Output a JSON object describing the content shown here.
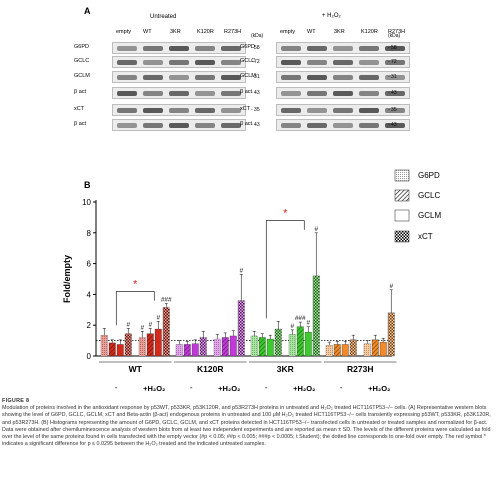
{
  "panel_a": {
    "letter": "A",
    "untreated_label": "Untreated",
    "treated_label": "+ H₂O₂",
    "kda_label": "(kDa)",
    "lanes_untreated": [
      "empty",
      "WT",
      "3KR",
      "K120R",
      "R273H"
    ],
    "lanes_treated": [
      "empty",
      "WT",
      "3KR",
      "K120R",
      "R273H"
    ],
    "rows": [
      {
        "name": "G6PD",
        "kda": "- 58"
      },
      {
        "name": "GCLC",
        "kda": "- 72"
      },
      {
        "name": "GCLM",
        "kda": "- 31"
      },
      {
        "name": "β act",
        "kda": "- 43"
      },
      {
        "name": "xCT",
        "kda": "- 35"
      },
      {
        "name": "β act",
        "kda": "- 43"
      }
    ]
  },
  "panel_b": {
    "letter": "B",
    "legend": [
      {
        "label": "G6PD"
      },
      {
        "label": "GCLC"
      },
      {
        "label": "GCLM"
      },
      {
        "label": "xCT"
      }
    ],
    "group_labels": [
      "WT",
      "K120R",
      "3KR",
      "R273H"
    ],
    "treatment_minus": "-",
    "treatment_plus": "+H₂O₂",
    "colors": {
      "WT": "#d42a1c",
      "K120R": "#c03ad8",
      "3KR": "#3ccb2c",
      "R273H": "#f08a2a",
      "star": "#e02020"
    }
  },
  "chart_data": {
    "type": "bar",
    "ylabel": "Fold/empty",
    "ylim": [
      0,
      10
    ],
    "yticks": [
      0,
      2,
      4,
      6,
      8,
      10
    ],
    "reference_line": 1,
    "groups": [
      {
        "name": "WT",
        "untreated": [
          1.35,
          0.85,
          0.75,
          1.45
        ],
        "treated": [
          1.2,
          1.45,
          1.75,
          3.15
        ],
        "untreated_err": [
          0.45,
          0.2,
          0.3,
          0.35
        ],
        "treated_err": [
          0.4,
          0.35,
          0.5,
          0.25
        ],
        "untreated_marks": [
          "",
          "",
          "",
          "#"
        ],
        "treated_marks": [
          "#",
          "#",
          "#",
          "###"
        ]
      },
      {
        "name": "K120R",
        "untreated": [
          0.75,
          0.75,
          0.8,
          1.2
        ],
        "treated": [
          1.1,
          1.2,
          1.3,
          3.6
        ],
        "untreated_err": [
          0.25,
          0.2,
          0.25,
          0.4
        ],
        "treated_err": [
          0.3,
          0.3,
          0.35,
          1.7
        ],
        "untreated_marks": [
          "",
          "",
          "",
          ""
        ],
        "treated_marks": [
          "",
          "",
          "",
          "#"
        ]
      },
      {
        "name": "3KR",
        "untreated": [
          1.3,
          1.2,
          1.1,
          1.75
        ],
        "treated": [
          1.4,
          1.9,
          1.55,
          5.2
        ],
        "untreated_err": [
          0.3,
          0.25,
          0.25,
          0.5
        ],
        "treated_err": [
          0.3,
          0.3,
          0.35,
          2.8
        ],
        "untreated_marks": [
          "",
          "",
          "",
          ""
        ],
        "treated_marks": [
          "#",
          "###",
          "#",
          "#"
        ]
      },
      {
        "name": "R273H",
        "untreated": [
          0.7,
          0.75,
          0.75,
          1.05
        ],
        "treated": [
          0.8,
          1.05,
          0.9,
          2.8
        ],
        "untreated_err": [
          0.2,
          0.2,
          0.2,
          0.3
        ],
        "treated_err": [
          0.2,
          0.3,
          0.25,
          1.5
        ],
        "untreated_marks": [
          "",
          "",
          "",
          ""
        ],
        "treated_marks": [
          "",
          "",
          "",
          "#"
        ]
      }
    ],
    "significance": [
      {
        "group": "WT",
        "label": "*"
      },
      {
        "group": "3KR",
        "label": "*"
      }
    ]
  },
  "caption": {
    "figure_label": "FIGURE 8",
    "text": "Modulation of proteins involved in the antioxidant response by p53WT, p533KR, p53K120R, and p53R273H proteins in untreated and H₂O₂ treated HCT116TP53−/− cells. (A) Representative western blots showing the level of G6PD, GCLC, GCLM, xCT and Beta-actin (β-act) endogenous proteins in untreated and 100 μM H₂O₂ treated HCT116TP53−/− cells transiently expressing p53WT, p533KR, p53K120R, and p53R273H. (B) Histograms representing the amount of G6PD, GCLC, GCLM, and xCT proteins detected in HCT116TP53−/− transfected cells in untreated or treated samples and normalized for β-act. Data were obtained after chemiluminescence analysis of western blots from at least two independent experiments and are reported as mean ± SD. The levels of the different proteins were calculated as fold over the level of the same proteins found in cells transfected with the empty vector (#p < 0.05; ##p < 0.005; ###p < 0.0005; t Student); the dotted line corresponds to one-fold over empty. The red symbol * indicates a significant difference for p ≤ 0.0295 between the H₂O₂ treated and the indicated untreated samples."
  }
}
